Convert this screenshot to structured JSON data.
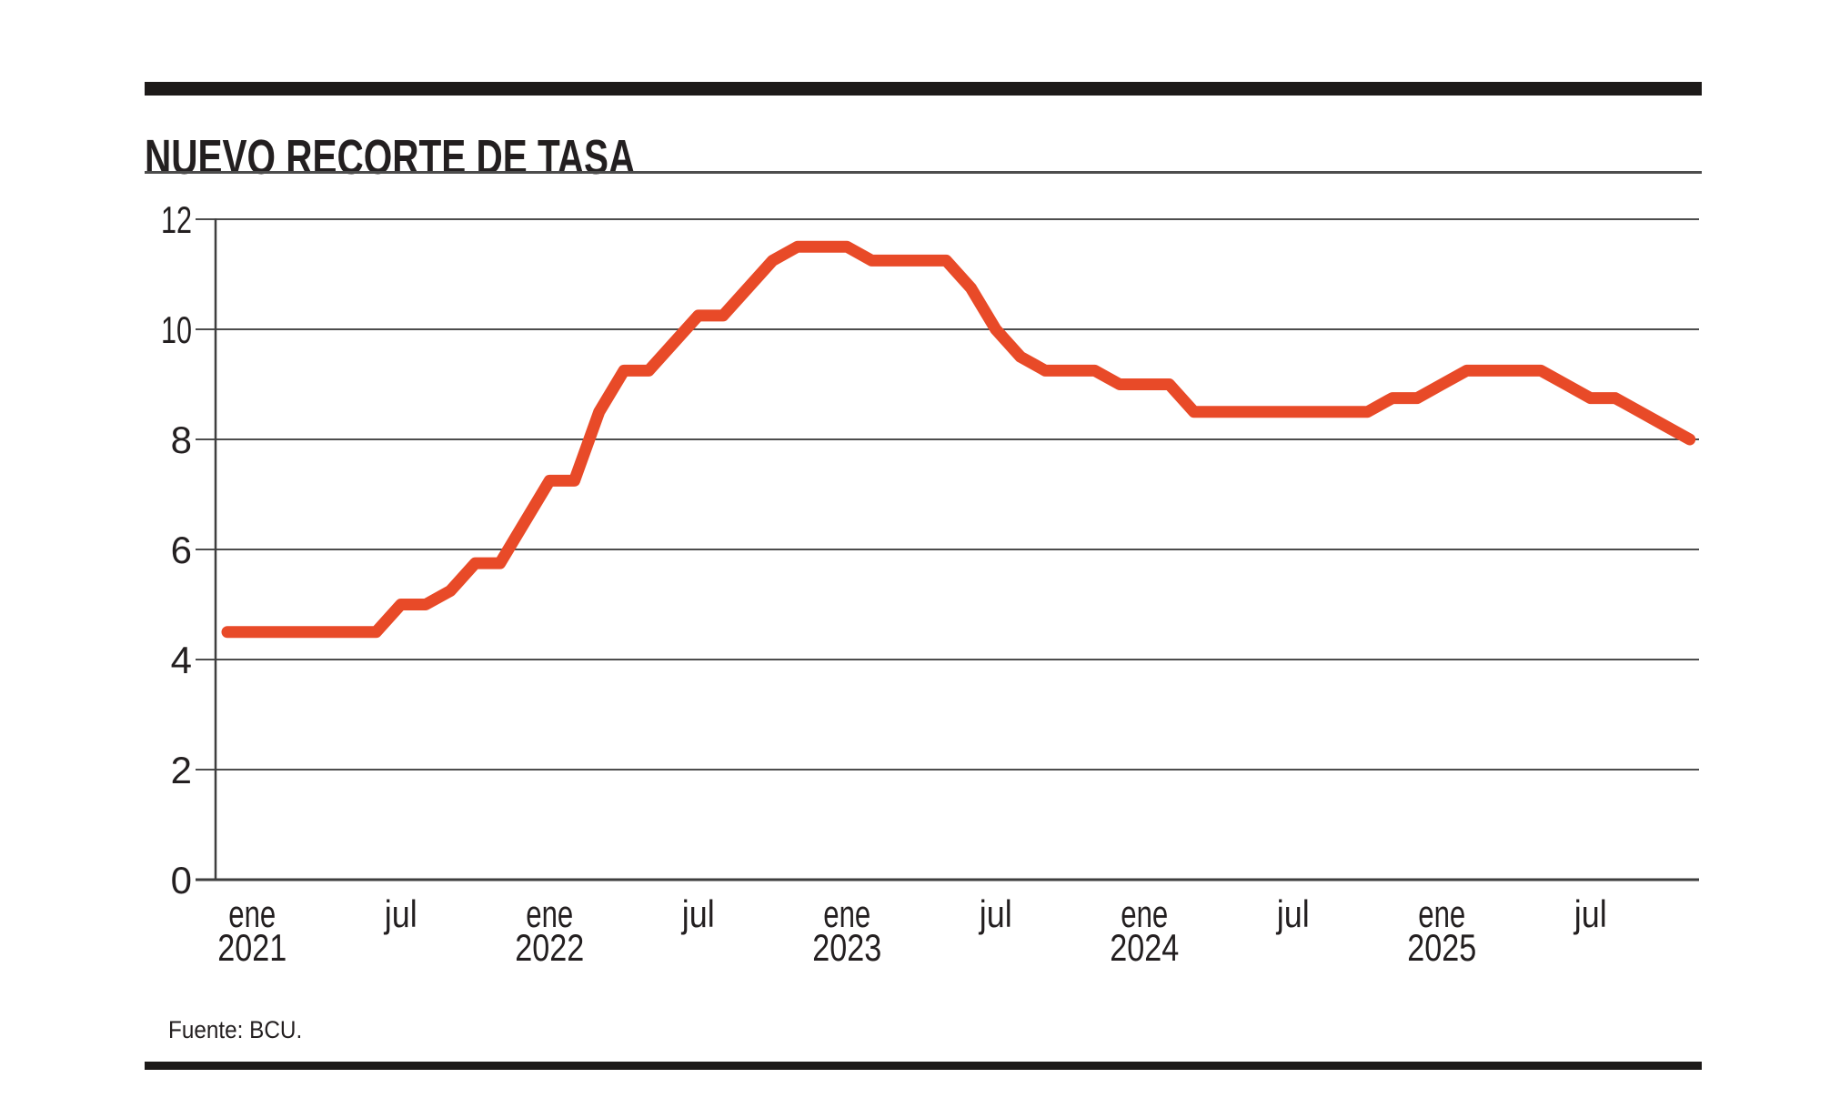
{
  "page": {
    "title": "NUEVO RECORTE DE TASA",
    "source": "Fuente: BCU.",
    "colors": {
      "line": "#e84a28",
      "grid": "#4d4d4d",
      "spine": "#3f3f3f",
      "text": "#231f20",
      "bar": "#1d1a19",
      "background": "#ffffff"
    }
  },
  "chart_data": {
    "type": "line",
    "title": "NUEVO RECORTE DE TASA",
    "source": "Fuente: BCU.",
    "x_start": "dic 2020",
    "x_end": "nov 2025",
    "ylim": [
      0,
      12
    ],
    "y_ticks": [
      0,
      2,
      4,
      6,
      8,
      10,
      12
    ],
    "grid": "horizontal",
    "legend": "none",
    "line_color": "#e84a28",
    "months": [
      "dic 2020",
      "ene 2021",
      "feb 2021",
      "mar 2021",
      "abr 2021",
      "may 2021",
      "jun 2021",
      "jul 2021",
      "ago 2021",
      "sep 2021",
      "oct 2021",
      "nov 2021",
      "dic 2021",
      "ene 2022",
      "feb 2022",
      "mar 2022",
      "abr 2022",
      "may 2022",
      "jun 2022",
      "jul 2022",
      "ago 2022",
      "sep 2022",
      "oct 2022",
      "nov 2022",
      "dic 2022",
      "ene 2023",
      "feb 2023",
      "mar 2023",
      "abr 2023",
      "may 2023",
      "jun 2023",
      "jul 2023",
      "ago 2023",
      "sep 2023",
      "oct 2023",
      "nov 2023",
      "dic 2023",
      "ene 2024",
      "feb 2024",
      "mar 2024",
      "abr 2024",
      "may 2024",
      "jun 2024",
      "jul 2024",
      "ago 2024",
      "sep 2024",
      "oct 2024",
      "nov 2024",
      "dic 2024",
      "ene 2025",
      "feb 2025",
      "mar 2025",
      "abr 2025",
      "may 2025",
      "jun 2025",
      "jul 2025",
      "ago 2025",
      "sep 2025",
      "oct 2025",
      "nov 2025"
    ],
    "values": [
      4.5,
      4.5,
      4.5,
      4.5,
      4.5,
      4.5,
      4.5,
      5.0,
      5.0,
      5.25,
      5.75,
      5.75,
      6.5,
      7.25,
      7.25,
      8.5,
      9.25,
      9.25,
      9.75,
      10.25,
      10.25,
      10.75,
      11.25,
      11.5,
      11.5,
      11.5,
      11.25,
      11.25,
      11.25,
      11.25,
      10.75,
      10.0,
      9.5,
      9.25,
      9.25,
      9.25,
      9.0,
      9.0,
      9.0,
      8.5,
      8.5,
      8.5,
      8.5,
      8.5,
      8.5,
      8.5,
      8.5,
      8.75,
      8.75,
      9.0,
      9.25,
      9.25,
      9.25,
      9.25,
      9.0,
      8.75,
      8.75,
      8.5,
      8.25,
      8.0
    ],
    "x_ticks": [
      {
        "label": "ene",
        "year": "2021",
        "month_index": 1
      },
      {
        "label": "jul",
        "year": "",
        "month_index": 7
      },
      {
        "label": "ene",
        "year": "2022",
        "month_index": 13
      },
      {
        "label": "jul",
        "year": "",
        "month_index": 19
      },
      {
        "label": "ene",
        "year": "2023",
        "month_index": 25
      },
      {
        "label": "jul",
        "year": "",
        "month_index": 31
      },
      {
        "label": "ene",
        "year": "2024",
        "month_index": 37
      },
      {
        "label": "jul",
        "year": "",
        "month_index": 43
      },
      {
        "label": "ene",
        "year": "2025",
        "month_index": 49
      },
      {
        "label": "jul",
        "year": "",
        "month_index": 55
      }
    ]
  }
}
